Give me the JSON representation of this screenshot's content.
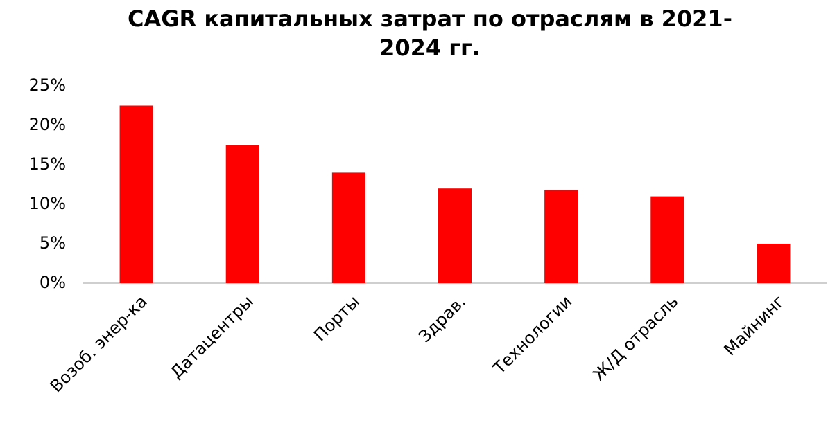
{
  "chart_data": {
    "type": "bar",
    "title": "CAGR капитальных затрат по отраслям в 2021-2024 гг.",
    "categories": [
      "Возоб. энер-ка",
      "Датацентры",
      "Порты",
      "Здрав.",
      "Технологии",
      "Ж/Д отрасль",
      "Майнинг"
    ],
    "values": [
      22.5,
      17.5,
      14.0,
      12.0,
      11.8,
      11.0,
      5.0
    ],
    "color": "#ff0000",
    "ylim": [
      0,
      25
    ],
    "yticks": [
      {
        "value": 0,
        "label": "0%"
      },
      {
        "value": 5,
        "label": "5%"
      },
      {
        "value": 10,
        "label": "10%"
      },
      {
        "value": 15,
        "label": "15%"
      },
      {
        "value": 20,
        "label": "20%"
      },
      {
        "value": 25,
        "label": "25%"
      }
    ],
    "grid": false
  }
}
